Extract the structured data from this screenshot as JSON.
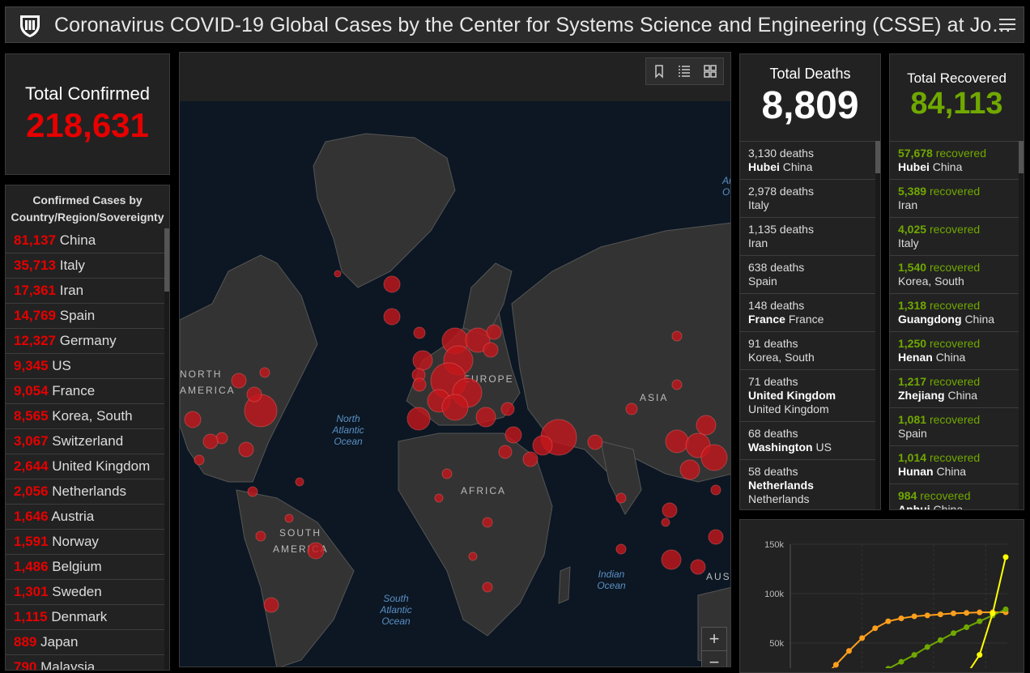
{
  "header": {
    "title": "Coronavirus COVID-19 Global Cases by the Center for Systems Science and Engineering (CSSE) at Jo…",
    "logo_icon": "university-shield-icon",
    "menu_icon": "hamburger-menu-icon"
  },
  "confirmed": {
    "label": "Total Confirmed",
    "value": "218,631"
  },
  "country_list": {
    "title_line1": "Confirmed Cases by",
    "title_line2": "Country/Region/Sovereignty",
    "items": [
      {
        "count": "81,137",
        "name": "China"
      },
      {
        "count": "35,713",
        "name": "Italy"
      },
      {
        "count": "17,361",
        "name": "Iran"
      },
      {
        "count": "14,769",
        "name": "Spain"
      },
      {
        "count": "12,327",
        "name": "Germany"
      },
      {
        "count": "9,345",
        "name": "US"
      },
      {
        "count": "9,054",
        "name": "France"
      },
      {
        "count": "8,565",
        "name": "Korea, South"
      },
      {
        "count": "3,067",
        "name": "Switzerland"
      },
      {
        "count": "2,644",
        "name": "United Kingdom"
      },
      {
        "count": "2,056",
        "name": "Netherlands"
      },
      {
        "count": "1,646",
        "name": "Austria"
      },
      {
        "count": "1,591",
        "name": "Norway"
      },
      {
        "count": "1,486",
        "name": "Belgium"
      },
      {
        "count": "1,301",
        "name": "Sweden"
      },
      {
        "count": "1,115",
        "name": "Denmark"
      },
      {
        "count": "889",
        "name": "Japan"
      },
      {
        "count": "790",
        "name": "Malaysia"
      }
    ]
  },
  "map": {
    "labels": {
      "north_america_1": "NORTH",
      "north_america_2": "AMERICA",
      "europe": "EUROPE",
      "asia": "ASIA",
      "africa": "AFRICA",
      "south_america_1": "SOUTH",
      "south_america_2": "AMERICA",
      "australia": "AUS",
      "n_atlantic_1": "North",
      "n_atlantic_2": "Atlantic",
      "n_atlantic_3": "Ocean",
      "s_atlantic_1": "South",
      "s_atlantic_2": "Atlantic",
      "s_atlantic_3": "Ocean",
      "indian_1": "Indian",
      "indian_2": "Ocean",
      "arctic_1": "Ar",
      "arctic_2": "O"
    },
    "zoom_in": "+",
    "zoom_out": "−"
  },
  "deaths": {
    "label": "Total Deaths",
    "value": "8,809",
    "items": [
      {
        "count": "3,130 deaths",
        "region": "Hubei",
        "country": "China"
      },
      {
        "count": "2,978 deaths",
        "region": "",
        "country": "Italy"
      },
      {
        "count": "1,135 deaths",
        "region": "",
        "country": "Iran"
      },
      {
        "count": "638 deaths",
        "region": "",
        "country": "Spain"
      },
      {
        "count": "148 deaths",
        "region": "France",
        "country": "France"
      },
      {
        "count": "91 deaths",
        "region": "",
        "country": "Korea, South"
      },
      {
        "count": "71 deaths",
        "region": "United Kingdom",
        "country": "United Kingdom"
      },
      {
        "count": "68 deaths",
        "region": "Washington",
        "country": "US"
      },
      {
        "count": "58 deaths",
        "region": "Netherlands",
        "country": "Netherlands"
      }
    ]
  },
  "recovered": {
    "label": "Total Recovered",
    "value": "84,113",
    "items": [
      {
        "count": "57,678",
        "suffix": "recovered",
        "region": "Hubei",
        "country": "China"
      },
      {
        "count": "5,389",
        "suffix": "recovered",
        "region": "",
        "country": "Iran"
      },
      {
        "count": "4,025",
        "suffix": "recovered",
        "region": "",
        "country": "Italy"
      },
      {
        "count": "1,540",
        "suffix": "recovered",
        "region": "",
        "country": "Korea, South"
      },
      {
        "count": "1,318",
        "suffix": "recovered",
        "region": "Guangdong",
        "country": "China"
      },
      {
        "count": "1,250",
        "suffix": "recovered",
        "region": "Henan",
        "country": "China"
      },
      {
        "count": "1,217",
        "suffix": "recovered",
        "region": "Zhejiang",
        "country": "China"
      },
      {
        "count": "1,081",
        "suffix": "recovered",
        "region": "",
        "country": "Spain"
      },
      {
        "count": "1,014",
        "suffix": "recovered",
        "region": "Hunan",
        "country": "China"
      },
      {
        "count": "984",
        "suffix": "recovered",
        "region": "Anhui",
        "country": "China"
      }
    ]
  },
  "colors": {
    "confirmed": "#e60000",
    "recovered": "#70a800",
    "orange": "#ff9f1c",
    "yellow": "#ffff00"
  },
  "chart_data": {
    "type": "line",
    "title": "",
    "ylim": [
      0,
      150000
    ],
    "yticks": [
      "150k",
      "100k",
      "50k"
    ],
    "series": [
      {
        "color": "#ff9f1c",
        "values": [
          0,
          5000,
          15000,
          28000,
          42000,
          55000,
          65000,
          72000,
          75000,
          77000,
          78000,
          79000,
          80000,
          80500,
          81000,
          81100,
          81137
        ]
      },
      {
        "color": "#70a800",
        "values": [
          0,
          300,
          1000,
          3000,
          6000,
          11000,
          17000,
          24000,
          31000,
          38000,
          46000,
          53000,
          60000,
          66000,
          72000,
          78000,
          84113
        ]
      },
      {
        "color": "#ffff00",
        "values": [
          0,
          0,
          0,
          0,
          0,
          0,
          0,
          0,
          0,
          0,
          0,
          3000,
          8000,
          18000,
          38000,
          80000,
          137000
        ]
      }
    ]
  }
}
